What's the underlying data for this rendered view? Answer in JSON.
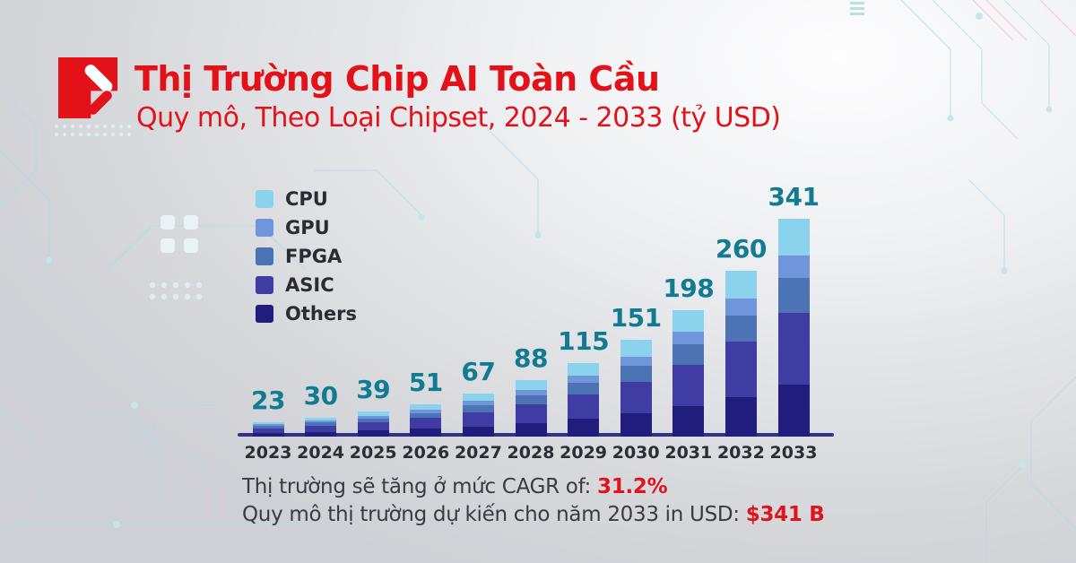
{
  "header": {
    "title": "Thị Trường Chip AI Toàn Cầu",
    "subtitle": "Quy mô, Theo Loại Chipset, 2024 - 2033 (tỷ USD)"
  },
  "chart_data": {
    "type": "bar",
    "stacked": true,
    "title": "Thị Trường Chip AI Toàn Cầu",
    "subtitle": "Quy mô, Theo Loại Chipset, 2024 - 2033 (tỷ USD)",
    "unit": "tỷ USD (billion USD)",
    "categories": [
      "2023",
      "2024",
      "2025",
      "2026",
      "2027",
      "2028",
      "2029",
      "2030",
      "2031",
      "2032",
      "2033"
    ],
    "totals": [
      23,
      30,
      39,
      51,
      67,
      88,
      115,
      151,
      198,
      260,
      341
    ],
    "series_bottom_to_top": [
      {
        "name": "Others",
        "color": "#211d7d",
        "values": [
          5.5,
          7.2,
          9.4,
          12.2,
          16.1,
          21.1,
          27.6,
          36.2,
          47.5,
          62.4,
          81.8
        ]
      },
      {
        "name": "ASIC",
        "color": "#3f3ca4",
        "values": [
          7.6,
          9.9,
          12.9,
          16.8,
          22.1,
          29.0,
          38.0,
          49.8,
          65.3,
          85.8,
          112.5
        ]
      },
      {
        "name": "FPGA",
        "color": "#4c73b3",
        "values": [
          3.7,
          4.8,
          6.2,
          8.2,
          10.7,
          14.1,
          18.4,
          24.2,
          31.7,
          41.6,
          54.6
        ]
      },
      {
        "name": "GPU",
        "color": "#7195da",
        "values": [
          2.3,
          3.0,
          3.9,
          5.1,
          6.7,
          8.8,
          11.5,
          15.1,
          19.8,
          26.0,
          34.1
        ]
      },
      {
        "name": "CPU",
        "color": "#8bd3ed",
        "values": [
          3.9,
          5.1,
          6.6,
          8.7,
          11.4,
          15.0,
          19.6,
          25.7,
          33.7,
          44.2,
          58.0
        ]
      }
    ],
    "legend_top_to_bottom": [
      "CPU",
      "GPU",
      "FPGA",
      "ASIC",
      "Others"
    ],
    "legend_position": "top-left",
    "value_label_color": "#127a91",
    "axis_color": "#34308c",
    "grid": false,
    "ylim": [
      0,
      341
    ]
  },
  "footer": {
    "line1_prefix": "Thị trường sẽ tăng ở mức CAGR of: ",
    "line1_highlight": "31.2%",
    "line2_prefix": "Quy mô thị trường dự kiến cho năm 2033 in USD: ",
    "line2_highlight": "$341 B"
  },
  "colors": {
    "brand_red": "#e31219",
    "highlight_red": "#e0151c",
    "value_teal": "#127a91",
    "axis_indigo": "#34308c",
    "text_dark": "#2d2d35"
  }
}
